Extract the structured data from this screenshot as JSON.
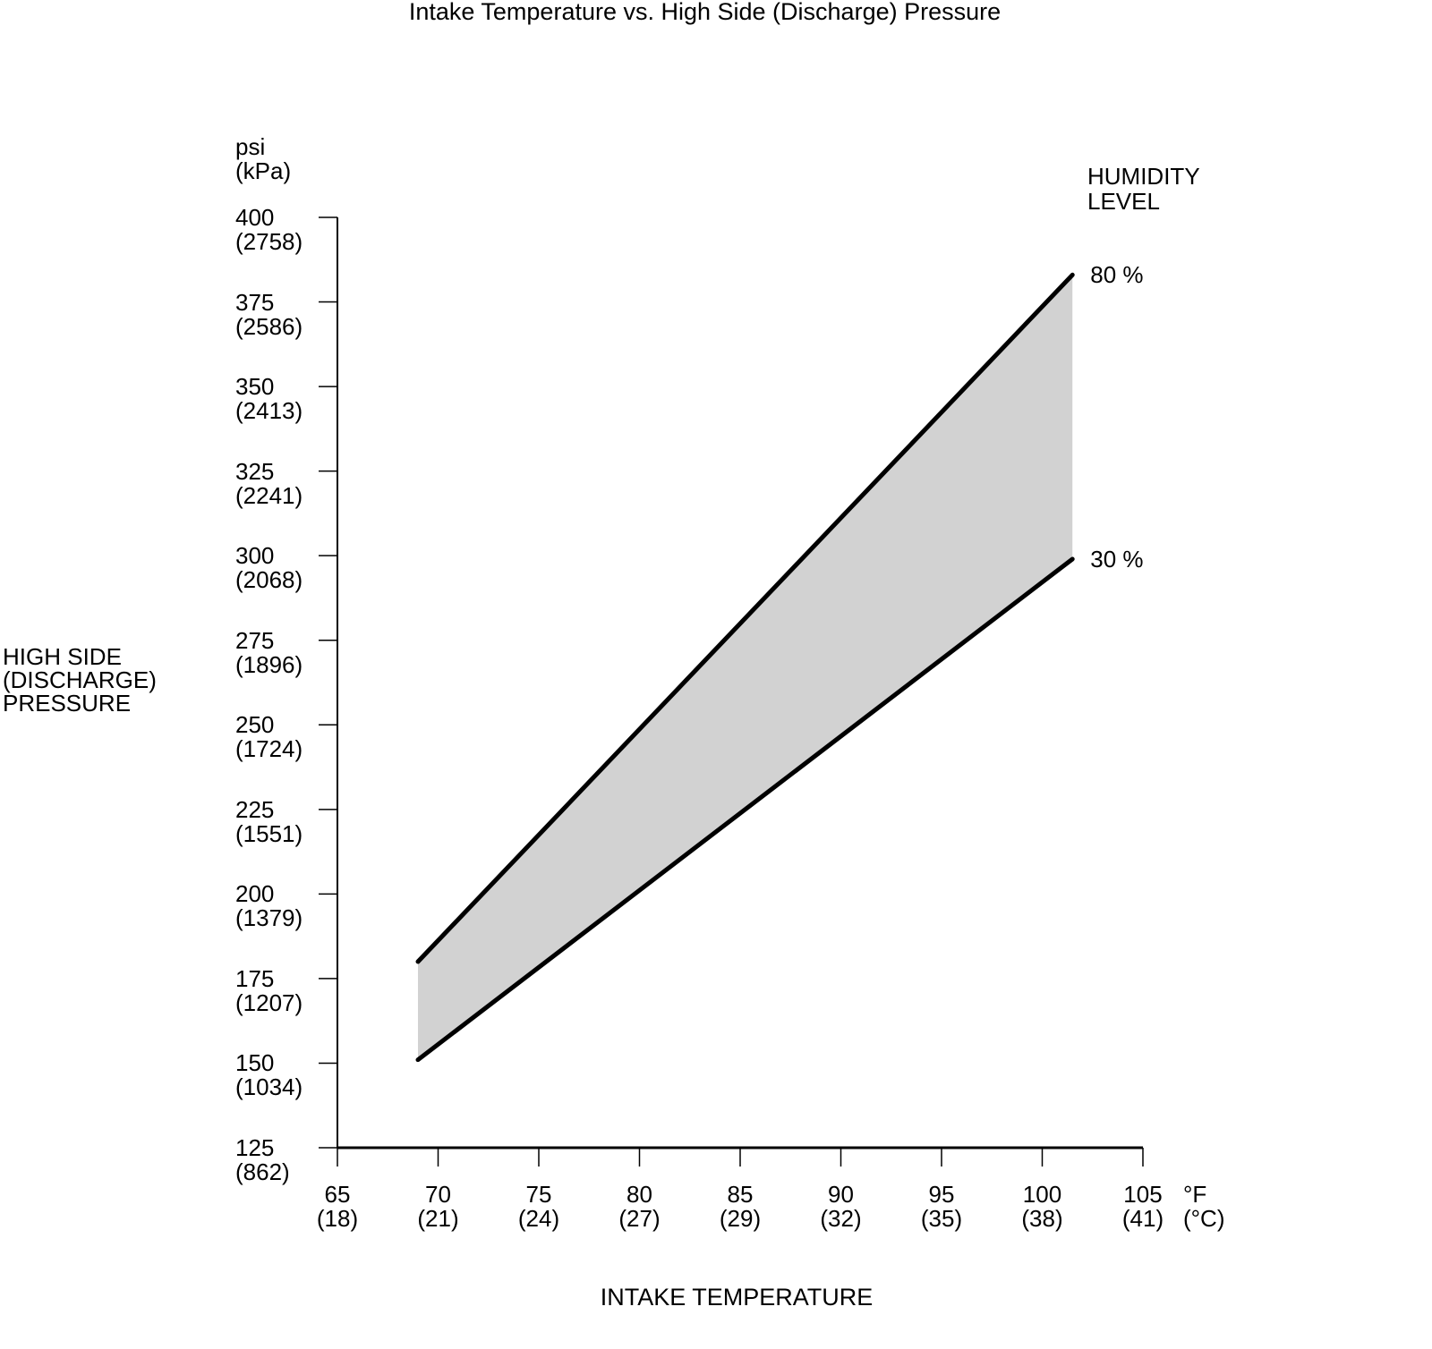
{
  "chart_data": {
    "type": "area",
    "title": "Intake Temperature vs. High Side (Discharge) Pressure",
    "xlabel": "INTAKE TEMPERATURE",
    "ylabel": "HIGH SIDE\n(DISCHARGE)\nPRESSURE",
    "legend_title": "HUMIDITY\nLEVEL",
    "legend_position": "right",
    "grid": false,
    "band_fill_color": "#d2d2d2",
    "line_color": "#000000",
    "background_color": "#ffffff",
    "x_axis": {
      "min": 65,
      "max": 105,
      "unit_primary": "°F",
      "unit_secondary": "(°C)",
      "ticks": [
        {
          "value": 65,
          "label": "65",
          "sub": "(18)"
        },
        {
          "value": 70,
          "label": "70",
          "sub": "(21)"
        },
        {
          "value": 75,
          "label": "75",
          "sub": "(24)"
        },
        {
          "value": 80,
          "label": "80",
          "sub": "(27)"
        },
        {
          "value": 85,
          "label": "85",
          "sub": "(29)"
        },
        {
          "value": 90,
          "label": "90",
          "sub": "(32)"
        },
        {
          "value": 95,
          "label": "95",
          "sub": "(35)"
        },
        {
          "value": 100,
          "label": "100",
          "sub": "(38)"
        },
        {
          "value": 105,
          "label": "105",
          "sub": "(41)"
        }
      ]
    },
    "y_axis": {
      "min": 125,
      "max": 400,
      "unit_primary": "psi",
      "unit_secondary": "(kPa)",
      "ticks": [
        {
          "value": 400,
          "label": "400",
          "sub": "(2758)"
        },
        {
          "value": 375,
          "label": "375",
          "sub": "(2586)"
        },
        {
          "value": 350,
          "label": "350",
          "sub": "(2413)"
        },
        {
          "value": 325,
          "label": "325",
          "sub": "(2241)"
        },
        {
          "value": 300,
          "label": "300",
          "sub": "(2068)"
        },
        {
          "value": 275,
          "label": "275",
          "sub": "(1896)"
        },
        {
          "value": 250,
          "label": "250",
          "sub": "(1724)"
        },
        {
          "value": 225,
          "label": "225",
          "sub": "(1551)"
        },
        {
          "value": 200,
          "label": "200",
          "sub": "(1379)"
        },
        {
          "value": 175,
          "label": "175",
          "sub": "(1207)"
        },
        {
          "value": 150,
          "label": "150",
          "sub": "(1034)"
        },
        {
          "value": 125,
          "label": "125",
          "sub": "(862)"
        }
      ]
    },
    "series": [
      {
        "name": "80 %",
        "humidity_percent": 80,
        "points": [
          {
            "temp_f": 69,
            "psi": 180
          },
          {
            "temp_f": 101.5,
            "psi": 383
          }
        ]
      },
      {
        "name": "30 %",
        "humidity_percent": 30,
        "points": [
          {
            "temp_f": 69,
            "psi": 151
          },
          {
            "temp_f": 101.5,
            "psi": 299
          }
        ]
      }
    ]
  }
}
